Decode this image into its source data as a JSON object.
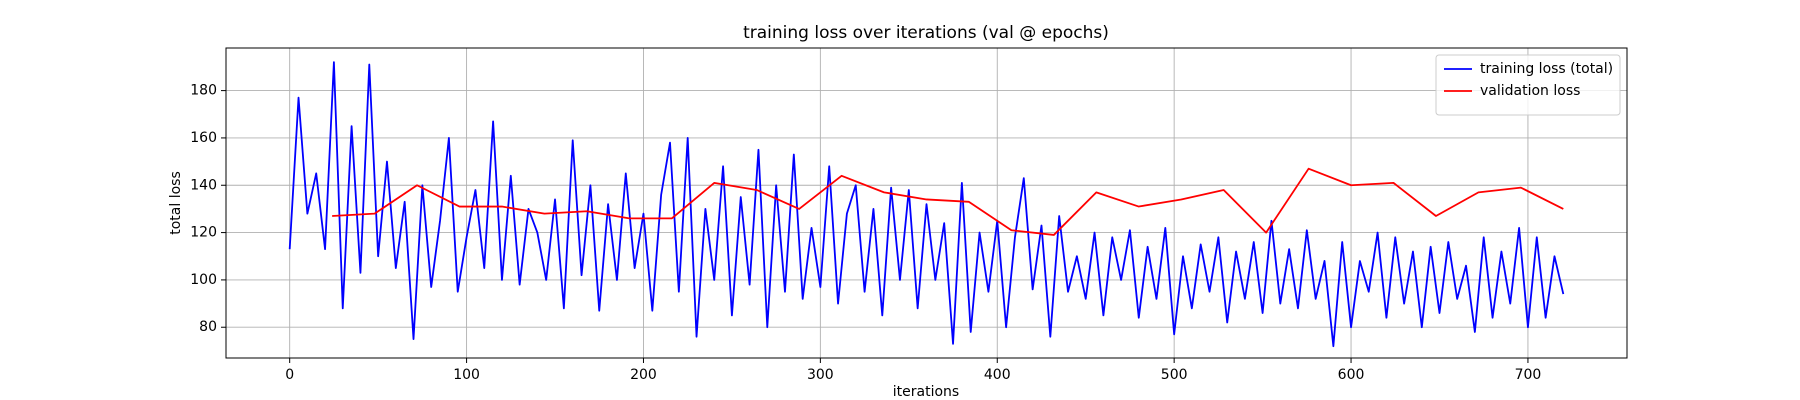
{
  "chart_data": {
    "type": "line",
    "title": "training loss over iterations (val @ epochs)",
    "x_label": "iterations",
    "y_label": "total loss",
    "xlim": [
      -36,
      756
    ],
    "xticks": [
      0,
      100,
      200,
      300,
      400,
      500,
      600,
      700
    ],
    "ylim": [
      67,
      198
    ],
    "yticks": [
      80,
      100,
      120,
      140,
      160,
      180
    ],
    "grid": true,
    "legend": "upper right",
    "series": [
      {
        "name": "training loss (total)",
        "color": "#0000ff",
        "x": [
          0,
          5,
          10,
          15,
          20,
          25,
          30,
          35,
          40,
          45,
          50,
          55,
          60,
          65,
          70,
          75,
          80,
          85,
          90,
          95,
          100,
          105,
          110,
          115,
          120,
          125,
          130,
          135,
          140,
          145,
          150,
          155,
          160,
          165,
          170,
          175,
          180,
          185,
          190,
          195,
          200,
          205,
          210,
          215,
          220,
          225,
          230,
          235,
          240,
          245,
          250,
          255,
          260,
          265,
          270,
          275,
          280,
          285,
          290,
          295,
          300,
          305,
          310,
          315,
          320,
          325,
          330,
          335,
          340,
          345,
          350,
          355,
          360,
          365,
          370,
          375,
          380,
          385,
          390,
          395,
          400,
          405,
          410,
          415,
          420,
          425,
          430,
          435,
          440,
          445,
          450,
          455,
          460,
          465,
          470,
          475,
          480,
          485,
          490,
          495,
          500,
          505,
          510,
          515,
          520,
          525,
          530,
          535,
          540,
          545,
          550,
          555,
          560,
          565,
          570,
          575,
          580,
          585,
          590,
          595,
          600,
          605,
          610,
          615,
          620,
          625,
          630,
          635,
          640,
          645,
          650,
          655,
          660,
          665,
          670,
          675,
          680,
          685,
          690,
          695,
          700,
          705,
          710,
          715,
          720
        ],
        "values": [
          113,
          177,
          128,
          145,
          113,
          192,
          88,
          165,
          103,
          191,
          110,
          150,
          105,
          133,
          75,
          140,
          97,
          125,
          160,
          95,
          118,
          138,
          105,
          167,
          100,
          144,
          98,
          130,
          120,
          100,
          134,
          88,
          159,
          102,
          140,
          87,
          132,
          100,
          145,
          105,
          128,
          87,
          136,
          158,
          95,
          160,
          76,
          130,
          100,
          148,
          85,
          135,
          98,
          155,
          80,
          140,
          95,
          153,
          92,
          122,
          97,
          148,
          90,
          128,
          140,
          95,
          130,
          85,
          139,
          100,
          138,
          88,
          132,
          100,
          124,
          73,
          141,
          78,
          120,
          95,
          125,
          80,
          118,
          143,
          96,
          123,
          76,
          127,
          95,
          110,
          92,
          120,
          85,
          118,
          100,
          121,
          84,
          114,
          92,
          122,
          77,
          110,
          88,
          115,
          95,
          118,
          82,
          112,
          92,
          116,
          86,
          125,
          90,
          113,
          88,
          121,
          92,
          108,
          72,
          116,
          80,
          108,
          95,
          120,
          84,
          118,
          90,
          112,
          80,
          114,
          86,
          116,
          92,
          106,
          78,
          118,
          84,
          112,
          90,
          122,
          80,
          118,
          84,
          110,
          94
        ]
      },
      {
        "name": "validation loss",
        "color": "#ff0000",
        "x": [
          24,
          48,
          72,
          96,
          120,
          144,
          168,
          192,
          216,
          240,
          264,
          288,
          312,
          336,
          360,
          384,
          408,
          432,
          456,
          480,
          504,
          528,
          552,
          576,
          600,
          624,
          648,
          672,
          696,
          720
        ],
        "values": [
          127,
          128,
          140,
          131,
          131,
          128,
          129,
          126,
          126,
          141,
          138,
          130,
          144,
          137,
          134,
          133,
          121,
          119,
          137,
          131,
          134,
          138,
          120,
          147,
          140,
          141,
          127,
          137,
          139,
          130
        ]
      }
    ]
  }
}
